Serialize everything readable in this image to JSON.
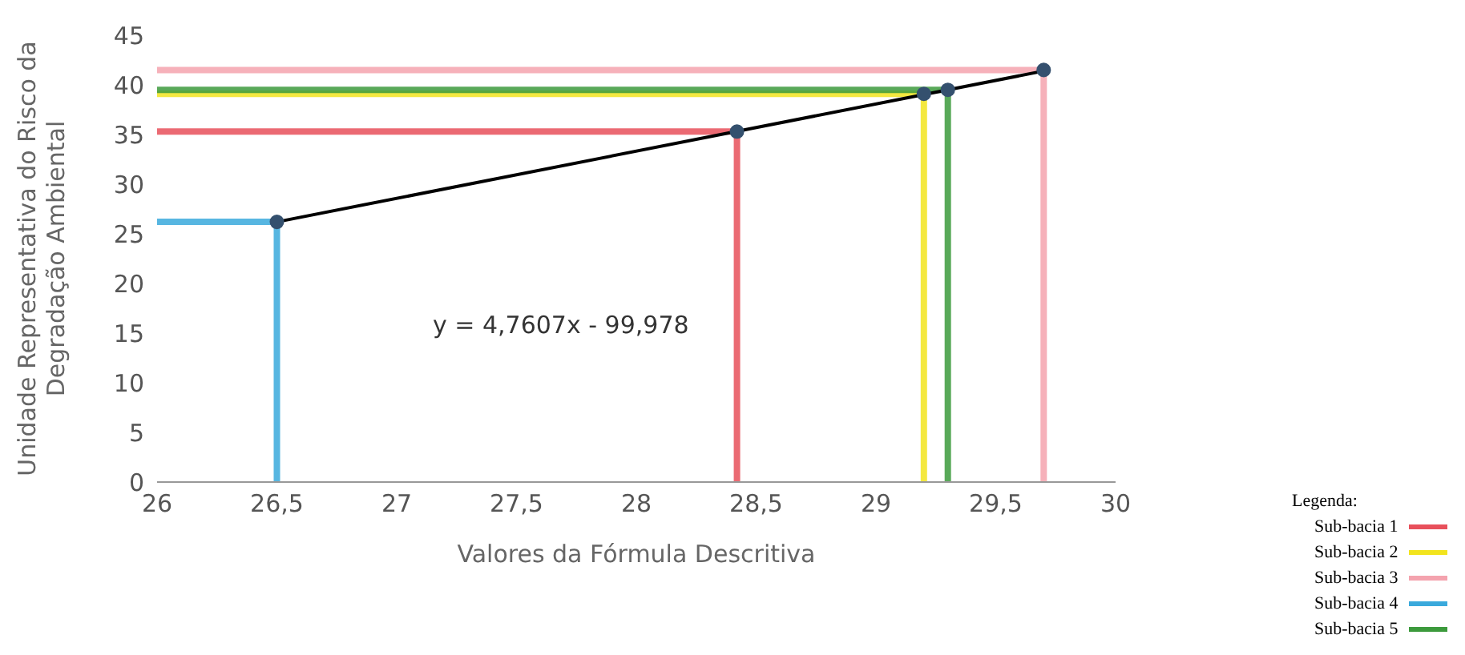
{
  "chart_data": {
    "type": "line",
    "xlabel": "Valores da Fórmula Descritiva",
    "ylabel": "Unidade Representativa do Risco da Degradação Ambiental",
    "legend_title": "Legenda:",
    "series": [
      {
        "name": "Sub-bacia 1",
        "color": "#e8505b",
        "x": [
          26,
          28.42,
          28.42
        ],
        "values": [
          35.3,
          35.3,
          0
        ]
      },
      {
        "name": "Sub-bacia 2",
        "color": "#f2e41e",
        "x": [
          26,
          29.2,
          29.2
        ],
        "values": [
          39.1,
          39.1,
          0
        ]
      },
      {
        "name": "Sub-bacia 3",
        "color": "#f4a3ae",
        "x": [
          26,
          29.7,
          29.7
        ],
        "values": [
          41.5,
          41.5,
          0
        ]
      },
      {
        "name": "Sub-bacia 4",
        "color": "#3aa9dc",
        "x": [
          26,
          26.5,
          26.5
        ],
        "values": [
          26.2,
          26.2,
          0
        ]
      },
      {
        "name": "Sub-bacia 5",
        "color": "#3c9a3c",
        "x": [
          26,
          29.3,
          29.3
        ],
        "values": [
          39.5,
          39.5,
          0
        ]
      },
      {
        "type": "line",
        "color": "#000000",
        "x": [
          26.5,
          29.7
        ],
        "values": [
          26.2,
          41.4
        ]
      },
      {
        "type": "scatter",
        "color": "#34506e",
        "x": [
          26.5,
          28.42,
          29.2,
          29.3,
          29.7
        ],
        "values": [
          26.2,
          35.3,
          39.1,
          39.5,
          41.5
        ]
      }
    ],
    "annotations": [
      "y = 4,7607x - 99,978"
    ],
    "xlim": [
      26,
      30
    ],
    "xticks": [
      26,
      {
        "value": 26.5,
        "label": "26,5"
      },
      27,
      {
        "value": 27.5,
        "label": "27,5"
      },
      28,
      {
        "value": 28.5,
        "label": "28,5"
      },
      29,
      {
        "value": 29.5,
        "label": "29,5"
      },
      30
    ],
    "ylim": [
      0,
      45
    ],
    "yticks": [
      0,
      5,
      10,
      15,
      20,
      25,
      30,
      35,
      40,
      45
    ],
    "grid": false,
    "legend": "bottom right",
    "line_style": "solid"
  }
}
